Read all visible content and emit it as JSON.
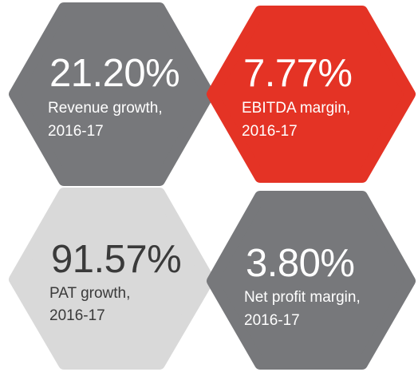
{
  "tiles": [
    {
      "value": "21.20%",
      "label": "Revenue growth,",
      "period": "2016-17"
    },
    {
      "value": "7.77%",
      "label": "EBITDA margin,",
      "period": "2016-17"
    },
    {
      "value": "91.57%",
      "label": "PAT growth,",
      "period": "2016-17"
    },
    {
      "value": "3.80%",
      "label": "Net profit margin,",
      "period": "2016-17"
    }
  ]
}
